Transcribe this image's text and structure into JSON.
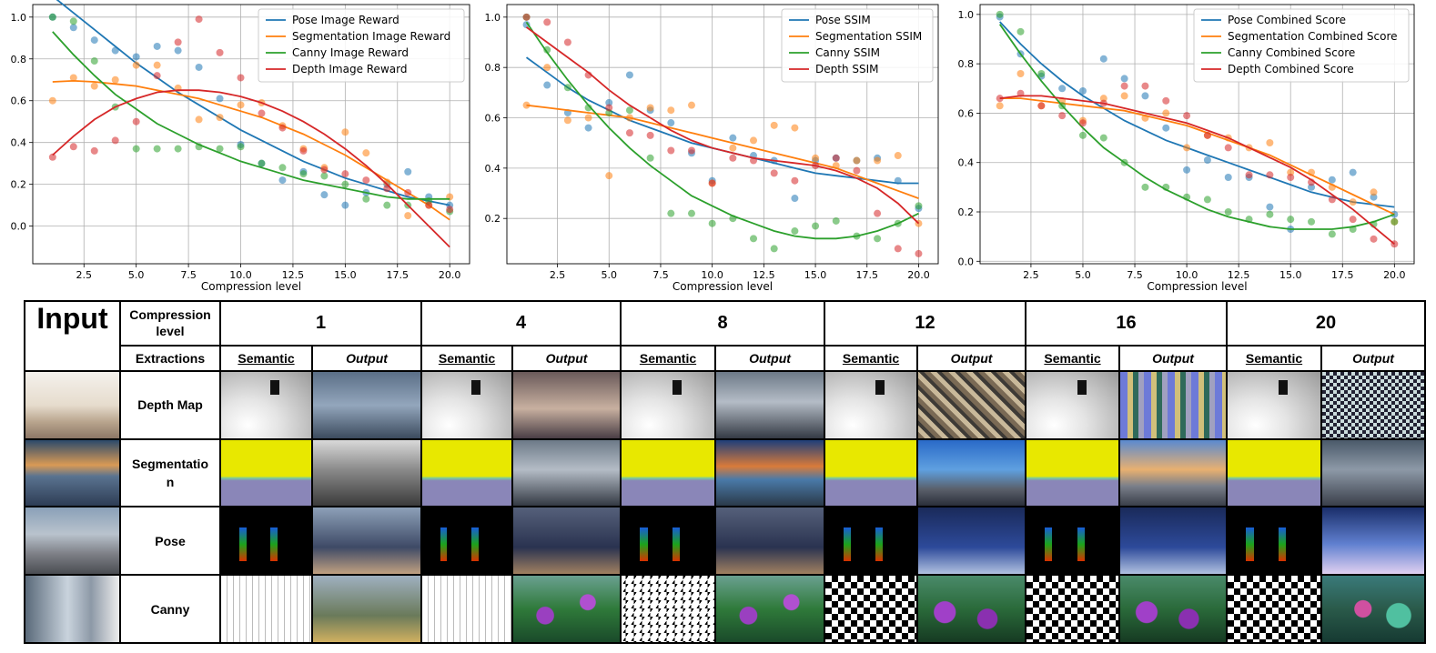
{
  "chart_data": [
    {
      "type": "scatter",
      "fit": "polynomial",
      "xlabel": "Compression level",
      "xlim": [
        0.05,
        20.95
      ],
      "ylim": [
        -0.18,
        1.06
      ],
      "xticks": [
        2.5,
        5.0,
        7.5,
        10.0,
        12.5,
        15.0,
        17.5,
        20.0
      ],
      "yticks": [
        0.0,
        0.2,
        0.4,
        0.6,
        0.8,
        1.0
      ],
      "grid": true,
      "legend": "top-right",
      "x": [
        1,
        2,
        3,
        4,
        5,
        6,
        7,
        8,
        9,
        10,
        11,
        12,
        13,
        14,
        15,
        16,
        17,
        18,
        19,
        20
      ],
      "series": [
        {
          "name": "Pose Image Reward",
          "color": "#1f77b4",
          "values": [
            1.0,
            0.95,
            0.89,
            0.84,
            0.81,
            0.86,
            0.84,
            0.76,
            0.61,
            0.39,
            0.3,
            0.22,
            0.26,
            0.15,
            0.1,
            0.16,
            0.2,
            0.26,
            0.14,
            0.1
          ],
          "fit": [
            1.1,
            1.02,
            0.94,
            0.86,
            0.78,
            0.71,
            0.64,
            0.58,
            0.52,
            0.46,
            0.41,
            0.36,
            0.31,
            0.27,
            0.23,
            0.2,
            0.17,
            0.14,
            0.12,
            0.1
          ]
        },
        {
          "name": "Segmentation Image Reward",
          "color": "#ff7f0e",
          "values": [
            0.6,
            0.71,
            0.67,
            0.7,
            0.77,
            0.77,
            0.66,
            0.51,
            0.52,
            0.58,
            0.59,
            0.48,
            0.37,
            0.28,
            0.45,
            0.35,
            0.21,
            0.05,
            0.1,
            0.14
          ],
          "fit": [
            0.69,
            0.695,
            0.69,
            0.68,
            0.67,
            0.65,
            0.63,
            0.61,
            0.58,
            0.55,
            0.52,
            0.48,
            0.44,
            0.39,
            0.34,
            0.28,
            0.22,
            0.16,
            0.1,
            0.03
          ]
        },
        {
          "name": "Canny Image Reward",
          "color": "#2ca02c",
          "values": [
            1.0,
            0.98,
            0.79,
            0.57,
            0.37,
            0.37,
            0.37,
            0.38,
            0.37,
            0.38,
            0.3,
            0.28,
            0.25,
            0.24,
            0.2,
            0.13,
            0.1,
            0.1,
            0.12,
            0.07
          ],
          "fit": [
            0.93,
            0.82,
            0.72,
            0.63,
            0.56,
            0.49,
            0.44,
            0.39,
            0.35,
            0.31,
            0.28,
            0.25,
            0.22,
            0.2,
            0.18,
            0.16,
            0.14,
            0.13,
            0.13,
            0.13
          ]
        },
        {
          "name": "Depth Image Reward",
          "color": "#d62728",
          "values": [
            0.33,
            0.38,
            0.36,
            0.41,
            0.5,
            0.72,
            0.88,
            0.99,
            0.83,
            0.71,
            0.54,
            0.47,
            0.36,
            0.27,
            0.25,
            0.22,
            0.18,
            0.16,
            0.1,
            0.08
          ],
          "fit": [
            0.34,
            0.43,
            0.51,
            0.57,
            0.61,
            0.64,
            0.65,
            0.65,
            0.64,
            0.62,
            0.59,
            0.55,
            0.5,
            0.44,
            0.37,
            0.29,
            0.2,
            0.1,
            0.0,
            -0.1
          ]
        }
      ]
    },
    {
      "type": "scatter",
      "fit": "polynomial",
      "xlabel": "Compression level",
      "xlim": [
        0.05,
        20.95
      ],
      "ylim": [
        0.02,
        1.05
      ],
      "xticks": [
        2.5,
        5.0,
        7.5,
        10.0,
        12.5,
        15.0,
        17.5,
        20.0
      ],
      "yticks": [
        0.2,
        0.4,
        0.6,
        0.8,
        1.0
      ],
      "grid": true,
      "legend": "top-right",
      "x": [
        1,
        2,
        3,
        4,
        5,
        6,
        7,
        8,
        9,
        10,
        11,
        12,
        13,
        14,
        15,
        16,
        17,
        18,
        19,
        20
      ],
      "series": [
        {
          "name": "Pose SSIM",
          "color": "#1f77b4",
          "values": [
            0.97,
            0.73,
            0.62,
            0.56,
            0.66,
            0.77,
            0.63,
            0.58,
            0.46,
            0.35,
            0.52,
            0.45,
            0.43,
            0.28,
            0.43,
            0.44,
            0.43,
            0.44,
            0.35,
            0.24
          ],
          "fit": [
            0.84,
            0.78,
            0.72,
            0.67,
            0.63,
            0.59,
            0.56,
            0.53,
            0.5,
            0.48,
            0.46,
            0.44,
            0.42,
            0.4,
            0.38,
            0.37,
            0.36,
            0.35,
            0.34,
            0.34
          ]
        },
        {
          "name": "Segmentation SSIM",
          "color": "#ff7f0e",
          "values": [
            0.65,
            0.8,
            0.59,
            0.6,
            0.37,
            0.6,
            0.64,
            0.63,
            0.65,
            0.34,
            0.48,
            0.51,
            0.57,
            0.56,
            0.44,
            0.41,
            0.43,
            0.43,
            0.45,
            0.18
          ],
          "fit": [
            0.65,
            0.64,
            0.63,
            0.62,
            0.61,
            0.6,
            0.58,
            0.56,
            0.54,
            0.52,
            0.5,
            0.48,
            0.46,
            0.44,
            0.42,
            0.4,
            0.37,
            0.34,
            0.31,
            0.28
          ]
        },
        {
          "name": "Canny SSIM",
          "color": "#2ca02c",
          "values": [
            1.0,
            0.87,
            0.72,
            0.64,
            0.62,
            0.63,
            0.44,
            0.22,
            0.22,
            0.18,
            0.2,
            0.12,
            0.08,
            0.15,
            0.17,
            0.19,
            0.13,
            0.12,
            0.18,
            0.25
          ],
          "fit": [
            0.98,
            0.86,
            0.75,
            0.65,
            0.56,
            0.48,
            0.41,
            0.35,
            0.29,
            0.25,
            0.21,
            0.18,
            0.15,
            0.13,
            0.12,
            0.12,
            0.13,
            0.15,
            0.18,
            0.22
          ]
        },
        {
          "name": "Depth SSIM",
          "color": "#d62728",
          "values": [
            1.0,
            0.98,
            0.9,
            0.77,
            0.64,
            0.54,
            0.53,
            0.47,
            0.47,
            0.34,
            0.44,
            0.43,
            0.38,
            0.35,
            0.41,
            0.44,
            0.39,
            0.22,
            0.08,
            0.06
          ],
          "fit": [
            0.96,
            0.9,
            0.84,
            0.78,
            0.71,
            0.65,
            0.6,
            0.55,
            0.51,
            0.48,
            0.46,
            0.44,
            0.43,
            0.42,
            0.41,
            0.39,
            0.36,
            0.32,
            0.26,
            0.18
          ]
        }
      ]
    },
    {
      "type": "scatter",
      "fit": "polynomial",
      "xlabel": "Compression level",
      "xlim": [
        0.05,
        20.95
      ],
      "ylim": [
        -0.01,
        1.04
      ],
      "xticks": [
        2.5,
        5.0,
        7.5,
        10.0,
        12.5,
        15.0,
        17.5,
        20.0
      ],
      "yticks": [
        0.0,
        0.2,
        0.4,
        0.6,
        0.8,
        1.0
      ],
      "grid": true,
      "legend": "top-right",
      "x": [
        1,
        2,
        3,
        4,
        5,
        6,
        7,
        8,
        9,
        10,
        11,
        12,
        13,
        14,
        15,
        16,
        17,
        18,
        19,
        20
      ],
      "series": [
        {
          "name": "Pose Combined Score",
          "color": "#1f77b4",
          "values": [
            0.99,
            0.84,
            0.75,
            0.7,
            0.69,
            0.82,
            0.74,
            0.67,
            0.54,
            0.37,
            0.41,
            0.34,
            0.34,
            0.22,
            0.13,
            0.3,
            0.33,
            0.36,
            0.26,
            0.19
          ],
          "fit": [
            0.97,
            0.88,
            0.8,
            0.73,
            0.67,
            0.62,
            0.57,
            0.53,
            0.49,
            0.46,
            0.43,
            0.4,
            0.37,
            0.34,
            0.31,
            0.28,
            0.26,
            0.24,
            0.23,
            0.22
          ]
        },
        {
          "name": "Segmentation Combined Score",
          "color": "#ff7f0e",
          "values": [
            0.63,
            0.76,
            0.63,
            0.65,
            0.57,
            0.66,
            0.67,
            0.58,
            0.6,
            0.46,
            0.51,
            0.5,
            0.46,
            0.48,
            0.36,
            0.36,
            0.3,
            0.24,
            0.28,
            0.16
          ],
          "fit": [
            0.66,
            0.66,
            0.65,
            0.64,
            0.63,
            0.62,
            0.61,
            0.59,
            0.57,
            0.55,
            0.52,
            0.49,
            0.46,
            0.43,
            0.39,
            0.35,
            0.31,
            0.27,
            0.23,
            0.19
          ]
        },
        {
          "name": "Canny Combined Score",
          "color": "#2ca02c",
          "values": [
            1.0,
            0.93,
            0.76,
            0.63,
            0.51,
            0.5,
            0.4,
            0.3,
            0.3,
            0.26,
            0.25,
            0.2,
            0.17,
            0.19,
            0.17,
            0.16,
            0.11,
            0.13,
            0.15,
            0.16
          ],
          "fit": [
            0.96,
            0.84,
            0.73,
            0.63,
            0.54,
            0.46,
            0.4,
            0.34,
            0.29,
            0.25,
            0.21,
            0.18,
            0.16,
            0.14,
            0.13,
            0.13,
            0.13,
            0.14,
            0.16,
            0.19
          ]
        },
        {
          "name": "Depth Combined Score",
          "color": "#d62728",
          "values": [
            0.66,
            0.68,
            0.63,
            0.59,
            0.56,
            0.64,
            0.71,
            0.71,
            0.65,
            0.59,
            0.51,
            0.46,
            0.35,
            0.35,
            0.34,
            0.32,
            0.25,
            0.17,
            0.09,
            0.07
          ],
          "fit": [
            0.66,
            0.67,
            0.67,
            0.66,
            0.65,
            0.64,
            0.62,
            0.6,
            0.58,
            0.56,
            0.53,
            0.5,
            0.46,
            0.42,
            0.38,
            0.33,
            0.27,
            0.21,
            0.14,
            0.07
          ]
        }
      ]
    }
  ],
  "table": {
    "input_title": "Input",
    "compression_label": "Compression level",
    "extractions_label": "Extractions",
    "semantic_label": "Semantic",
    "output_label": "Output",
    "levels": [
      "1",
      "4",
      "8",
      "12",
      "16",
      "20"
    ],
    "rows": [
      {
        "label": "Depth Map"
      },
      {
        "label": "Segmentation"
      },
      {
        "label": "Pose"
      },
      {
        "label": "Canny"
      }
    ]
  }
}
